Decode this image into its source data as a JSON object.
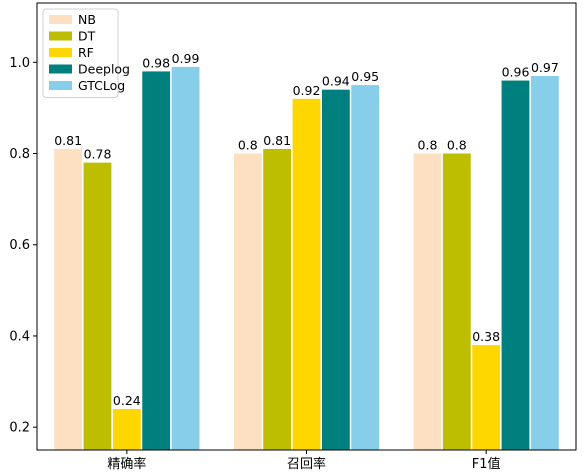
{
  "chart_data": {
    "type": "bar",
    "categories": [
      "精确率",
      "召回率",
      "F1值"
    ],
    "series": [
      {
        "name": "NB",
        "values": [
          0.81,
          0.8,
          0.8
        ],
        "labels": [
          "0.81",
          "0.8",
          "0.8"
        ],
        "color": "#FDE0C1"
      },
      {
        "name": "DT",
        "values": [
          0.78,
          0.81,
          0.8
        ],
        "labels": [
          "0.78",
          "0.81",
          "0.8"
        ],
        "color": "#BDBE00"
      },
      {
        "name": "RF",
        "values": [
          0.24,
          0.92,
          0.38
        ],
        "labels": [
          "0.24",
          "0.92",
          "0.38"
        ],
        "color": "#FFD700"
      },
      {
        "name": "Deeplog",
        "values": [
          0.98,
          0.94,
          0.96
        ],
        "labels": [
          "0.98",
          "0.94",
          "0.96"
        ],
        "color": "#007F7F"
      },
      {
        "name": "GTCLog",
        "values": [
          0.99,
          0.95,
          0.97
        ],
        "labels": [
          "0.99",
          "0.95",
          "0.97"
        ],
        "color": "#87CEEB"
      }
    ],
    "ylim": [
      0.15,
      1.13
    ],
    "yticks": [
      "0.2",
      "0.4",
      "0.6",
      "0.8",
      "1.0"
    ],
    "legend_position": "top-left",
    "grid": false
  }
}
